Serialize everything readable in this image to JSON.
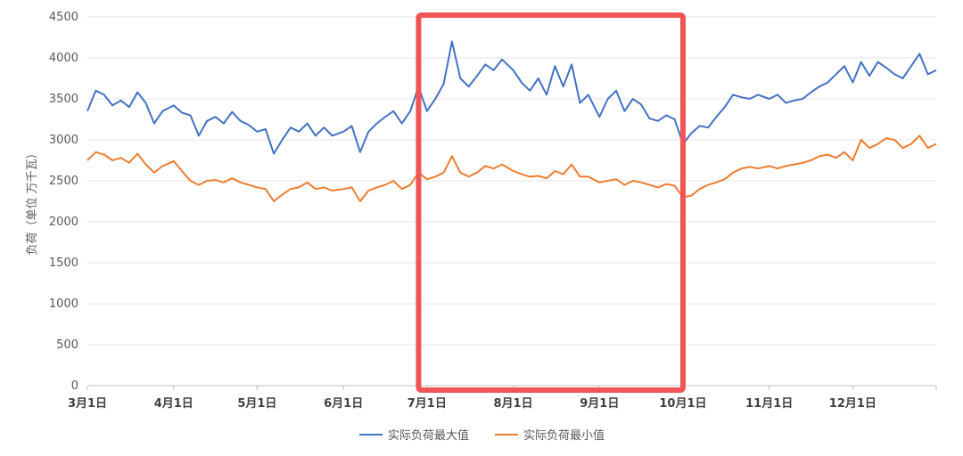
{
  "chart_data": {
    "type": "line",
    "title": "",
    "ylabel": "负荷（单位 万千瓦）",
    "xlabel": "",
    "ylim": [
      0,
      4500
    ],
    "y_ticks": [
      0,
      500,
      1000,
      1500,
      2000,
      2500,
      3000,
      3500,
      4000,
      4500
    ],
    "x_ticks": [
      "3月1日",
      "4月1日",
      "5月1日",
      "6月1日",
      "7月1日",
      "8月1日",
      "9月1日",
      "10月1日",
      "11月1日",
      "12月1日"
    ],
    "grid": "horizontal",
    "legend_position": "bottom",
    "highlight": {
      "from": "6月28日",
      "to": "10月1日",
      "color": "#f05454"
    },
    "series": [
      {
        "name": "实际负荷最大值",
        "color": "#4472c4",
        "points": [
          [
            "3月1日",
            3350
          ],
          [
            "3月4日",
            3600
          ],
          [
            "3月7日",
            3550
          ],
          [
            "3月10日",
            3420
          ],
          [
            "3月13日",
            3480
          ],
          [
            "3月16日",
            3400
          ],
          [
            "3月19日",
            3580
          ],
          [
            "3月22日",
            3450
          ],
          [
            "3月25日",
            3200
          ],
          [
            "3月28日",
            3350
          ],
          [
            "4月1日",
            3420
          ],
          [
            "4月4日",
            3330
          ],
          [
            "4月7日",
            3300
          ],
          [
            "4月10日",
            3050
          ],
          [
            "4月13日",
            3230
          ],
          [
            "4月16日",
            3280
          ],
          [
            "4月19日",
            3200
          ],
          [
            "4月22日",
            3340
          ],
          [
            "4月25日",
            3230
          ],
          [
            "4月28日",
            3180
          ],
          [
            "5月1日",
            3100
          ],
          [
            "5月4日",
            3130
          ],
          [
            "5月7日",
            2830
          ],
          [
            "5月10日",
            3000
          ],
          [
            "5月13日",
            3150
          ],
          [
            "5月16日",
            3100
          ],
          [
            "5月19日",
            3200
          ],
          [
            "5月22日",
            3050
          ],
          [
            "5月25日",
            3150
          ],
          [
            "5月28日",
            3050
          ],
          [
            "6月1日",
            3100
          ],
          [
            "6月4日",
            3170
          ],
          [
            "6月7日",
            2850
          ],
          [
            "6月10日",
            3100
          ],
          [
            "6月13日",
            3200
          ],
          [
            "6月16日",
            3280
          ],
          [
            "6月19日",
            3350
          ],
          [
            "6月22日",
            3200
          ],
          [
            "6月25日",
            3350
          ],
          [
            "6月28日",
            3650
          ],
          [
            "7月1日",
            3350
          ],
          [
            "7月4日",
            3500
          ],
          [
            "7月7日",
            3680
          ],
          [
            "7月10日",
            4200
          ],
          [
            "7月13日",
            3750
          ],
          [
            "7月16日",
            3650
          ],
          [
            "7月19日",
            3780
          ],
          [
            "7月22日",
            3920
          ],
          [
            "7月25日",
            3850
          ],
          [
            "7月28日",
            3980
          ],
          [
            "8月1日",
            3850
          ],
          [
            "8月4日",
            3700
          ],
          [
            "8月7日",
            3600
          ],
          [
            "8月10日",
            3750
          ],
          [
            "8月13日",
            3550
          ],
          [
            "8月16日",
            3900
          ],
          [
            "8月19日",
            3650
          ],
          [
            "8月22日",
            3920
          ],
          [
            "8月25日",
            3450
          ],
          [
            "8月28日",
            3550
          ],
          [
            "9月1日",
            3280
          ],
          [
            "9月4日",
            3500
          ],
          [
            "9月7日",
            3600
          ],
          [
            "9月10日",
            3350
          ],
          [
            "9月13日",
            3500
          ],
          [
            "9月16日",
            3430
          ],
          [
            "9月19日",
            3260
          ],
          [
            "9月22日",
            3230
          ],
          [
            "9月25日",
            3300
          ],
          [
            "9月28日",
            3250
          ],
          [
            "10月1日",
            2950
          ],
          [
            "10月4日",
            3080
          ],
          [
            "10月7日",
            3170
          ],
          [
            "10月10日",
            3150
          ],
          [
            "10月13日",
            3280
          ],
          [
            "10月16日",
            3400
          ],
          [
            "10月19日",
            3550
          ],
          [
            "10月22日",
            3520
          ],
          [
            "10月25日",
            3500
          ],
          [
            "10月28日",
            3550
          ],
          [
            "11月1日",
            3500
          ],
          [
            "11月4日",
            3550
          ],
          [
            "11月7日",
            3450
          ],
          [
            "11月10日",
            3480
          ],
          [
            "11月13日",
            3500
          ],
          [
            "11月16日",
            3580
          ],
          [
            "11月19日",
            3650
          ],
          [
            "11月22日",
            3700
          ],
          [
            "11月25日",
            3800
          ],
          [
            "11月28日",
            3900
          ],
          [
            "12月1日",
            3700
          ],
          [
            "12月4日",
            3950
          ],
          [
            "12月7日",
            3780
          ],
          [
            "12月10日",
            3950
          ],
          [
            "12月13日",
            3880
          ],
          [
            "12月16日",
            3800
          ],
          [
            "12月19日",
            3750
          ],
          [
            "12月22日",
            3900
          ],
          [
            "12月25日",
            4050
          ],
          [
            "12月28日",
            3800
          ],
          [
            "12月31日",
            3850
          ]
        ]
      },
      {
        "name": "实际负荷最小值",
        "color": "#ed7d31",
        "points": [
          [
            "3月1日",
            2750
          ],
          [
            "3月4日",
            2850
          ],
          [
            "3月7日",
            2820
          ],
          [
            "3月10日",
            2750
          ],
          [
            "3月13日",
            2780
          ],
          [
            "3月16日",
            2720
          ],
          [
            "3月19日",
            2830
          ],
          [
            "3月22日",
            2700
          ],
          [
            "3月25日",
            2600
          ],
          [
            "3月28日",
            2680
          ],
          [
            "4月1日",
            2740
          ],
          [
            "4月4日",
            2620
          ],
          [
            "4月7日",
            2500
          ],
          [
            "4月10日",
            2450
          ],
          [
            "4月13日",
            2500
          ],
          [
            "4月16日",
            2510
          ],
          [
            "4月19日",
            2480
          ],
          [
            "4月22日",
            2530
          ],
          [
            "4月25日",
            2480
          ],
          [
            "4月28日",
            2450
          ],
          [
            "5月1日",
            2420
          ],
          [
            "5月4日",
            2400
          ],
          [
            "5月7日",
            2250
          ],
          [
            "5月10日",
            2330
          ],
          [
            "5月13日",
            2400
          ],
          [
            "5月16日",
            2420
          ],
          [
            "5月19日",
            2480
          ],
          [
            "5月22日",
            2400
          ],
          [
            "5月25日",
            2420
          ],
          [
            "5月28日",
            2380
          ],
          [
            "6月1日",
            2400
          ],
          [
            "6月4日",
            2420
          ],
          [
            "6月7日",
            2250
          ],
          [
            "6月10日",
            2380
          ],
          [
            "6月13日",
            2420
          ],
          [
            "6月16日",
            2450
          ],
          [
            "6月19日",
            2500
          ],
          [
            "6月22日",
            2400
          ],
          [
            "6月25日",
            2450
          ],
          [
            "6月28日",
            2600
          ],
          [
            "7月1日",
            2520
          ],
          [
            "7月4日",
            2550
          ],
          [
            "7月7日",
            2600
          ],
          [
            "7月10日",
            2800
          ],
          [
            "7月13日",
            2600
          ],
          [
            "7月16日",
            2550
          ],
          [
            "7月19日",
            2600
          ],
          [
            "7月22日",
            2680
          ],
          [
            "7月25日",
            2650
          ],
          [
            "7月28日",
            2700
          ],
          [
            "8月1日",
            2620
          ],
          [
            "8月4日",
            2580
          ],
          [
            "8月7日",
            2550
          ],
          [
            "8月10日",
            2560
          ],
          [
            "8月13日",
            2530
          ],
          [
            "8月16日",
            2620
          ],
          [
            "8月19日",
            2580
          ],
          [
            "8月22日",
            2700
          ],
          [
            "8月25日",
            2550
          ],
          [
            "8月28日",
            2550
          ],
          [
            "9月1日",
            2480
          ],
          [
            "9月4日",
            2500
          ],
          [
            "9月7日",
            2520
          ],
          [
            "9月10日",
            2450
          ],
          [
            "9月13日",
            2500
          ],
          [
            "9月16日",
            2480
          ],
          [
            "9月19日",
            2450
          ],
          [
            "9月22日",
            2420
          ],
          [
            "9月25日",
            2460
          ],
          [
            "9月28日",
            2440
          ],
          [
            "10月1日",
            2300
          ],
          [
            "10月4日",
            2320
          ],
          [
            "10月7日",
            2400
          ],
          [
            "10月10日",
            2450
          ],
          [
            "10月13日",
            2480
          ],
          [
            "10月16日",
            2520
          ],
          [
            "10月19日",
            2600
          ],
          [
            "10月22日",
            2650
          ],
          [
            "10月25日",
            2670
          ],
          [
            "10月28日",
            2650
          ],
          [
            "11月1日",
            2680
          ],
          [
            "11月4日",
            2650
          ],
          [
            "11月7日",
            2680
          ],
          [
            "11月10日",
            2700
          ],
          [
            "11月13日",
            2720
          ],
          [
            "11月16日",
            2750
          ],
          [
            "11月19日",
            2800
          ],
          [
            "11月22日",
            2820
          ],
          [
            "11月25日",
            2780
          ],
          [
            "11月28日",
            2850
          ],
          [
            "12月1日",
            2750
          ],
          [
            "12月4日",
            3000
          ],
          [
            "12月7日",
            2900
          ],
          [
            "12月10日",
            2950
          ],
          [
            "12月13日",
            3020
          ],
          [
            "12月16日",
            3000
          ],
          [
            "12月19日",
            2900
          ],
          [
            "12月22日",
            2950
          ],
          [
            "12月25日",
            3050
          ],
          [
            "12月28日",
            2900
          ],
          [
            "12月31日",
            2950
          ]
        ]
      }
    ]
  }
}
